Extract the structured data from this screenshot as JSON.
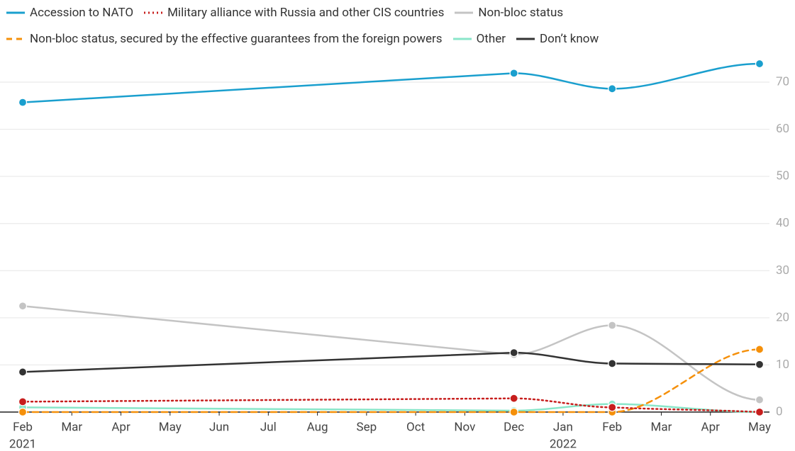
{
  "chart_data": {
    "type": "line",
    "x": [
      "2021-02",
      "2021-12",
      "2022-02",
      "2022-05"
    ],
    "xlim": [
      "2021-02",
      "2022-05"
    ],
    "xticks": [
      {
        "value": "2021-02",
        "label": "Feb",
        "year": "2021"
      },
      {
        "value": "2021-03",
        "label": "Mar"
      },
      {
        "value": "2021-04",
        "label": "Apr"
      },
      {
        "value": "2021-05",
        "label": "May"
      },
      {
        "value": "2021-06",
        "label": "Jun"
      },
      {
        "value": "2021-07",
        "label": "Jul"
      },
      {
        "value": "2021-08",
        "label": "Aug"
      },
      {
        "value": "2021-09",
        "label": "Sep"
      },
      {
        "value": "2021-10",
        "label": "Oct"
      },
      {
        "value": "2021-11",
        "label": "Nov"
      },
      {
        "value": "2021-12",
        "label": "Dec"
      },
      {
        "value": "2022-01",
        "label": "Jan",
        "year": "2022"
      },
      {
        "value": "2022-02",
        "label": "Feb"
      },
      {
        "value": "2022-03",
        "label": "Mar"
      },
      {
        "value": "2022-04",
        "label": "Apr"
      },
      {
        "value": "2022-05",
        "label": "May"
      }
    ],
    "ylim": [
      0,
      75
    ],
    "yticks": [
      0,
      10,
      20,
      30,
      40,
      50,
      60,
      70
    ],
    "grid": true,
    "legend": "top",
    "series": [
      {
        "name": "Accession to NATO",
        "color": "#1a9fce",
        "dash": "solid",
        "values": [
          65.7,
          71.9,
          68.6,
          73.9
        ]
      },
      {
        "name": "Military alliance with Russia and other CIS countries",
        "color": "#c71e1d",
        "dash": "dotted",
        "values": [
          2.2,
          2.9,
          1.0,
          0
        ]
      },
      {
        "name": "Non-bloc status",
        "color": "#c4c4c4",
        "dash": "solid",
        "values": [
          22.5,
          12.2,
          18.4,
          2.6
        ]
      },
      {
        "name": "Non-bloc status, secured by the effective guarantees from the foreign powers",
        "color": "#f5900a",
        "dash": "dashed",
        "values": [
          0,
          0,
          0,
          13.3
        ]
      },
      {
        "name": "Other",
        "color": "#8ae6c9",
        "dash": "solid",
        "values": [
          1.0,
          0.3,
          1.7,
          0
        ]
      },
      {
        "name": "Don’t know",
        "color": "#333333",
        "dash": "solid",
        "values": [
          8.5,
          12.6,
          10.3,
          10.1
        ]
      }
    ]
  }
}
